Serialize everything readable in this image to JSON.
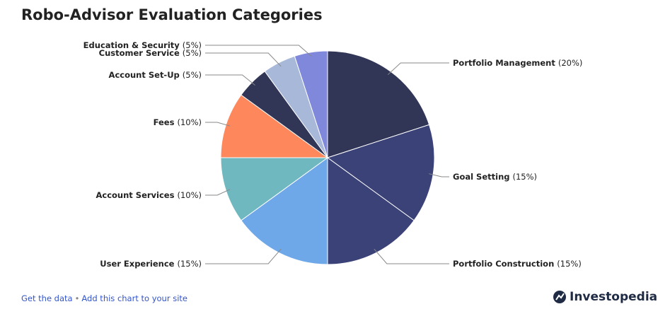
{
  "chart_data": {
    "type": "pie",
    "title": "Robo-Advisor Evaluation Categories",
    "categories": [
      "Portfolio Management",
      "Goal Setting",
      "Portfolio Construction",
      "User Experience",
      "Account Services",
      "Fees",
      "Account Set-Up",
      "Customer Service",
      "Education & Security"
    ],
    "values": [
      20,
      15,
      15,
      15,
      10,
      10,
      5,
      5,
      5
    ],
    "value_labels": [
      "(20%)",
      "(15%)",
      "(15%)",
      "(15%)",
      "(10%)",
      "(10%)",
      "(5%)",
      "(5%)",
      "(5%)"
    ],
    "colors": [
      "#313657",
      "#3a4278",
      "#3a4278",
      "#6fa8e8",
      "#6fb8c0",
      "#ff875c",
      "#313657",
      "#a8b8d8",
      "#8088dc"
    ]
  },
  "footer": {
    "links": [
      "Get the data",
      "Add this chart to your site"
    ],
    "separator": "•",
    "brand": "Investopedia"
  }
}
